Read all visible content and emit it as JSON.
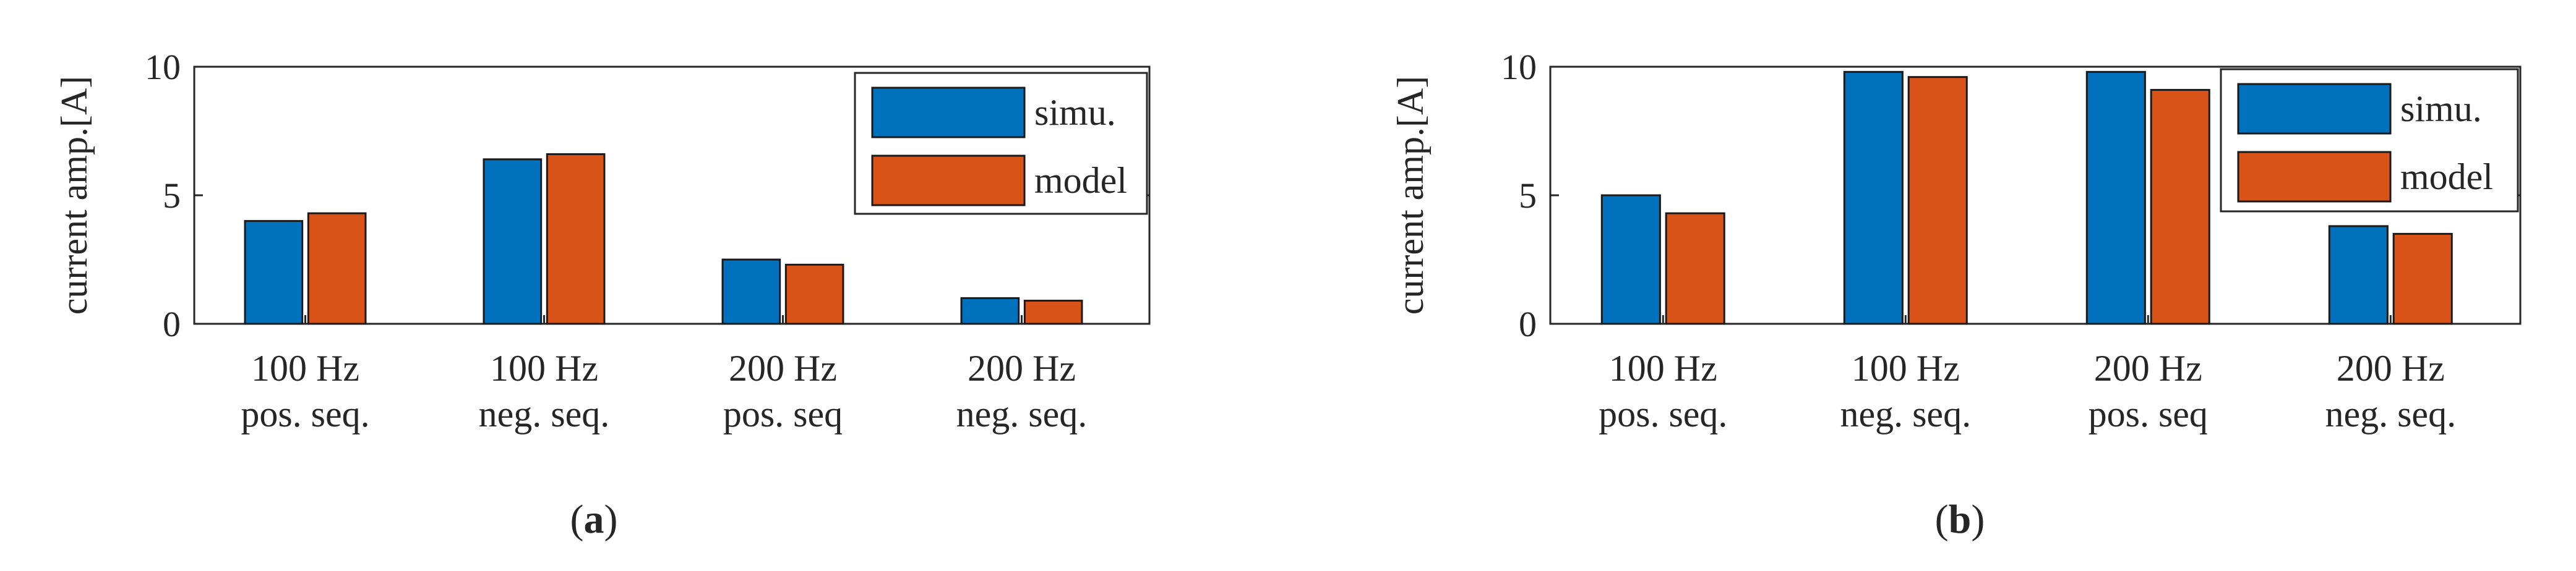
{
  "chart_data": [
    {
      "type": "bar",
      "panel_label": "(a)",
      "ylabel": "current amp.[A]",
      "ylim": [
        0,
        10
      ],
      "yticks": [
        "0",
        "5",
        "10"
      ],
      "categories": [
        [
          "100 Hz",
          "pos. seq."
        ],
        [
          "100 Hz",
          "neg. seq."
        ],
        [
          "200 Hz",
          "pos. seq"
        ],
        [
          "200 Hz",
          "neg. seq."
        ]
      ],
      "series": [
        {
          "name": "simu.",
          "color": "#0072BD",
          "values": [
            4.0,
            6.4,
            2.5,
            1.0
          ]
        },
        {
          "name": "model",
          "color": "#D95319",
          "values": [
            4.3,
            6.6,
            2.3,
            0.9
          ]
        }
      ],
      "legend": "top-right",
      "grid": false
    },
    {
      "type": "bar",
      "panel_label": "(b)",
      "ylabel": "current amp.[A]",
      "ylim": [
        0,
        10
      ],
      "yticks": [
        "0",
        "5",
        "10"
      ],
      "categories": [
        [
          "100 Hz",
          "pos. seq."
        ],
        [
          "100 Hz",
          "neg. seq."
        ],
        [
          "200 Hz",
          "pos. seq"
        ],
        [
          "200 Hz",
          "neg. seq."
        ]
      ],
      "series": [
        {
          "name": "simu.",
          "color": "#0072BD",
          "values": [
            5.0,
            9.8,
            9.8,
            3.8
          ]
        },
        {
          "name": "model",
          "color": "#D95319",
          "values": [
            4.3,
            9.6,
            9.1,
            3.5
          ]
        }
      ],
      "legend": "top-right",
      "grid": false
    }
  ]
}
